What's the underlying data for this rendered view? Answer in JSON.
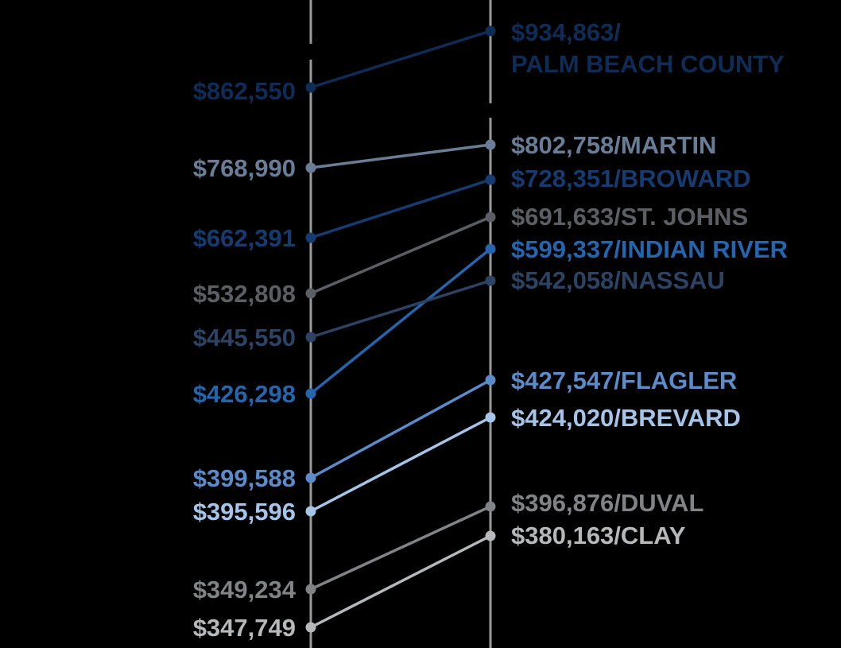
{
  "chart_data": {
    "type": "line",
    "subtype": "slope",
    "series": [
      {
        "name": "PALM BEACH COUNTY",
        "start": 862550,
        "end": 934863,
        "start_label": "$862,550",
        "end_label_lines": [
          "$934,863/",
          "PALM BEACH COUNTY"
        ],
        "color": "#0f2c57"
      },
      {
        "name": "MARTIN",
        "start": 768990,
        "end": 802758,
        "start_label": "$768,990",
        "end_label_lines": [
          "$802,758/MARTIN"
        ],
        "color": "#6a7d97"
      },
      {
        "name": "BROWARD",
        "start": 662391,
        "end": 728351,
        "start_label": "$662,391",
        "end_label_lines": [
          "$728,351/BROWARD"
        ],
        "color": "#163b70"
      },
      {
        "name": "ST. JOHNS",
        "start": 532808,
        "end": 691633,
        "start_label": "$532,808",
        "end_label_lines": [
          "$691,633/ST. JOHNS"
        ],
        "color": "#5b5f63"
      },
      {
        "name": "INDIAN RIVER",
        "start": 426298,
        "end": 599337,
        "start_label": "$426,298",
        "end_label_lines": [
          "$599,337/INDIAN RIVER"
        ],
        "color": "#2565ad"
      },
      {
        "name": "NASSAU",
        "start": 445550,
        "end": 542058,
        "start_label": "$445,550",
        "end_label_lines": [
          "$542,058/NASSAU"
        ],
        "color": "#2d4363"
      },
      {
        "name": "FLAGLER",
        "start": 399588,
        "end": 427547,
        "start_label": "$399,588",
        "end_label_lines": [
          "$427,547/FLAGLER"
        ],
        "color": "#5b8bc9"
      },
      {
        "name": "BREVARD",
        "start": 395596,
        "end": 424020,
        "start_label": "$395,596",
        "end_label_lines": [
          "$424,020/BREVARD"
        ],
        "color": "#a6c4e8"
      },
      {
        "name": "DUVAL",
        "start": 349234,
        "end": 396876,
        "start_label": "$349,234",
        "end_label_lines": [
          "$396,876/DUVAL"
        ],
        "color": "#818386"
      },
      {
        "name": "CLAY",
        "start": 347749,
        "end": 380163,
        "start_label": "$347,749",
        "end_label_lines": [
          "$380,163/CLAY"
        ],
        "color": "#b7b8ba"
      }
    ]
  }
}
